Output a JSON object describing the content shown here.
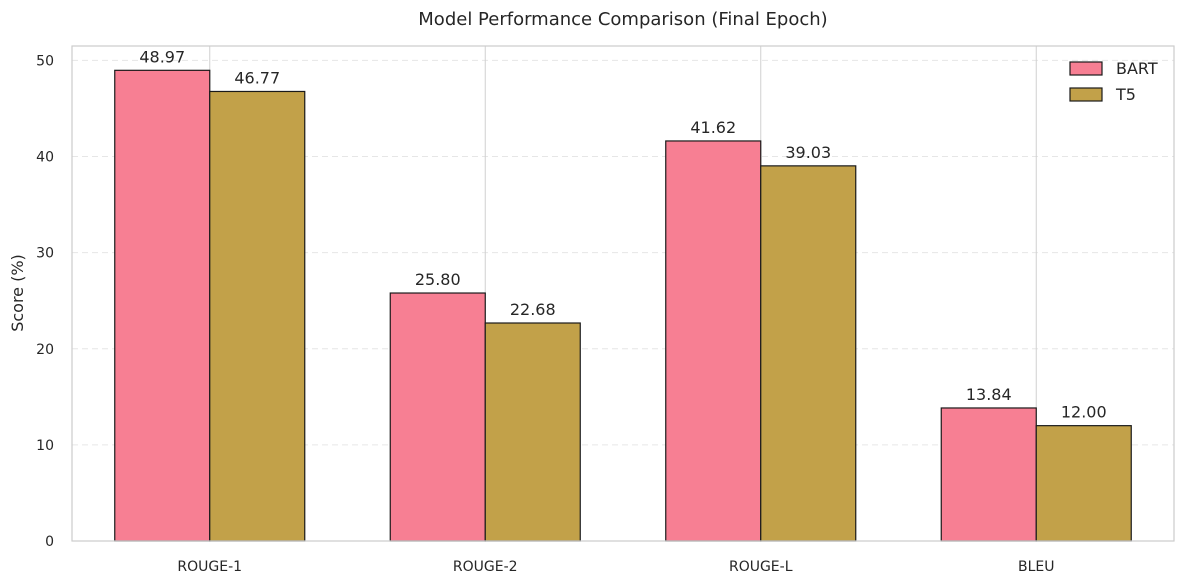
{
  "chart_data": {
    "type": "bar",
    "title": "Model Performance Comparison (Final Epoch)",
    "xlabel": "",
    "ylabel": "Score (%)",
    "ylim": [
      0,
      51.5
    ],
    "yticks": [
      0,
      10,
      20,
      30,
      40,
      50
    ],
    "categories": [
      "ROUGE-1",
      "ROUGE-2",
      "ROUGE-L",
      "BLEU"
    ],
    "series": [
      {
        "name": "BART",
        "values": [
          48.97,
          25.8,
          41.62,
          13.84
        ],
        "color": "#f77f93"
      },
      {
        "name": "T5",
        "values": [
          46.77,
          22.68,
          39.03,
          12.0
        ],
        "color": "#c2a149"
      }
    ],
    "grid": true,
    "legend": "top-right"
  }
}
